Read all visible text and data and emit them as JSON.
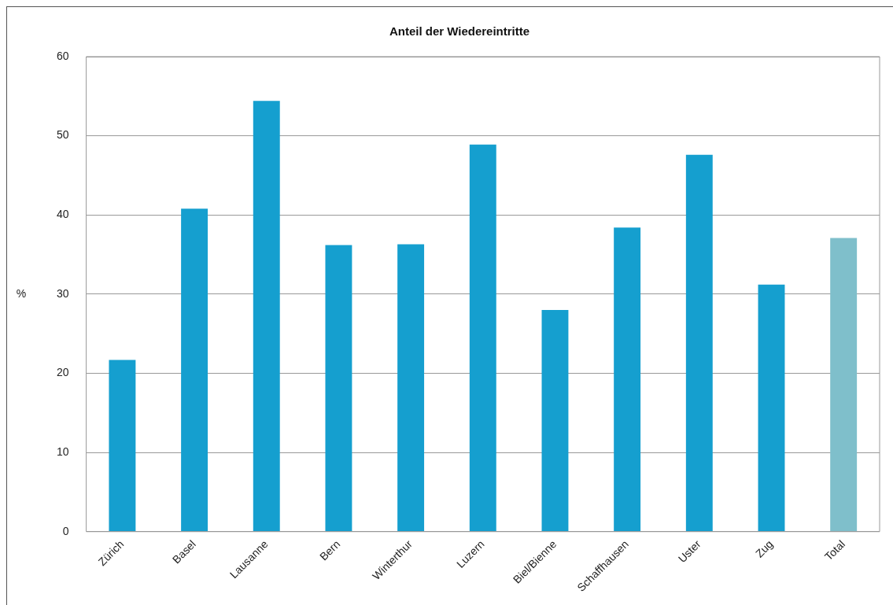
{
  "chart_data": {
    "type": "bar",
    "title": "Anteil der Wiedereintritte",
    "ylabel": "%",
    "categories": [
      "Zürich",
      "Basel",
      "Lausanne",
      "Bern",
      "Winterthur",
      "Luzern",
      "Biel/Bienne",
      "Schaffhausen",
      "Uster",
      "Zug",
      "Total"
    ],
    "values": [
      21.7,
      40.8,
      54.4,
      36.2,
      36.3,
      48.9,
      28.0,
      38.4,
      47.6,
      31.2,
      37.1
    ],
    "colors": [
      "#159fcf",
      "#159fcf",
      "#159fcf",
      "#159fcf",
      "#159fcf",
      "#159fcf",
      "#159fcf",
      "#159fcf",
      "#159fcf",
      "#159fcf",
      "#7fbfcb"
    ],
    "ylim": [
      0,
      60
    ],
    "yticks": [
      0,
      10,
      20,
      30,
      40,
      50,
      60
    ],
    "grid": "y",
    "legend": false
  }
}
